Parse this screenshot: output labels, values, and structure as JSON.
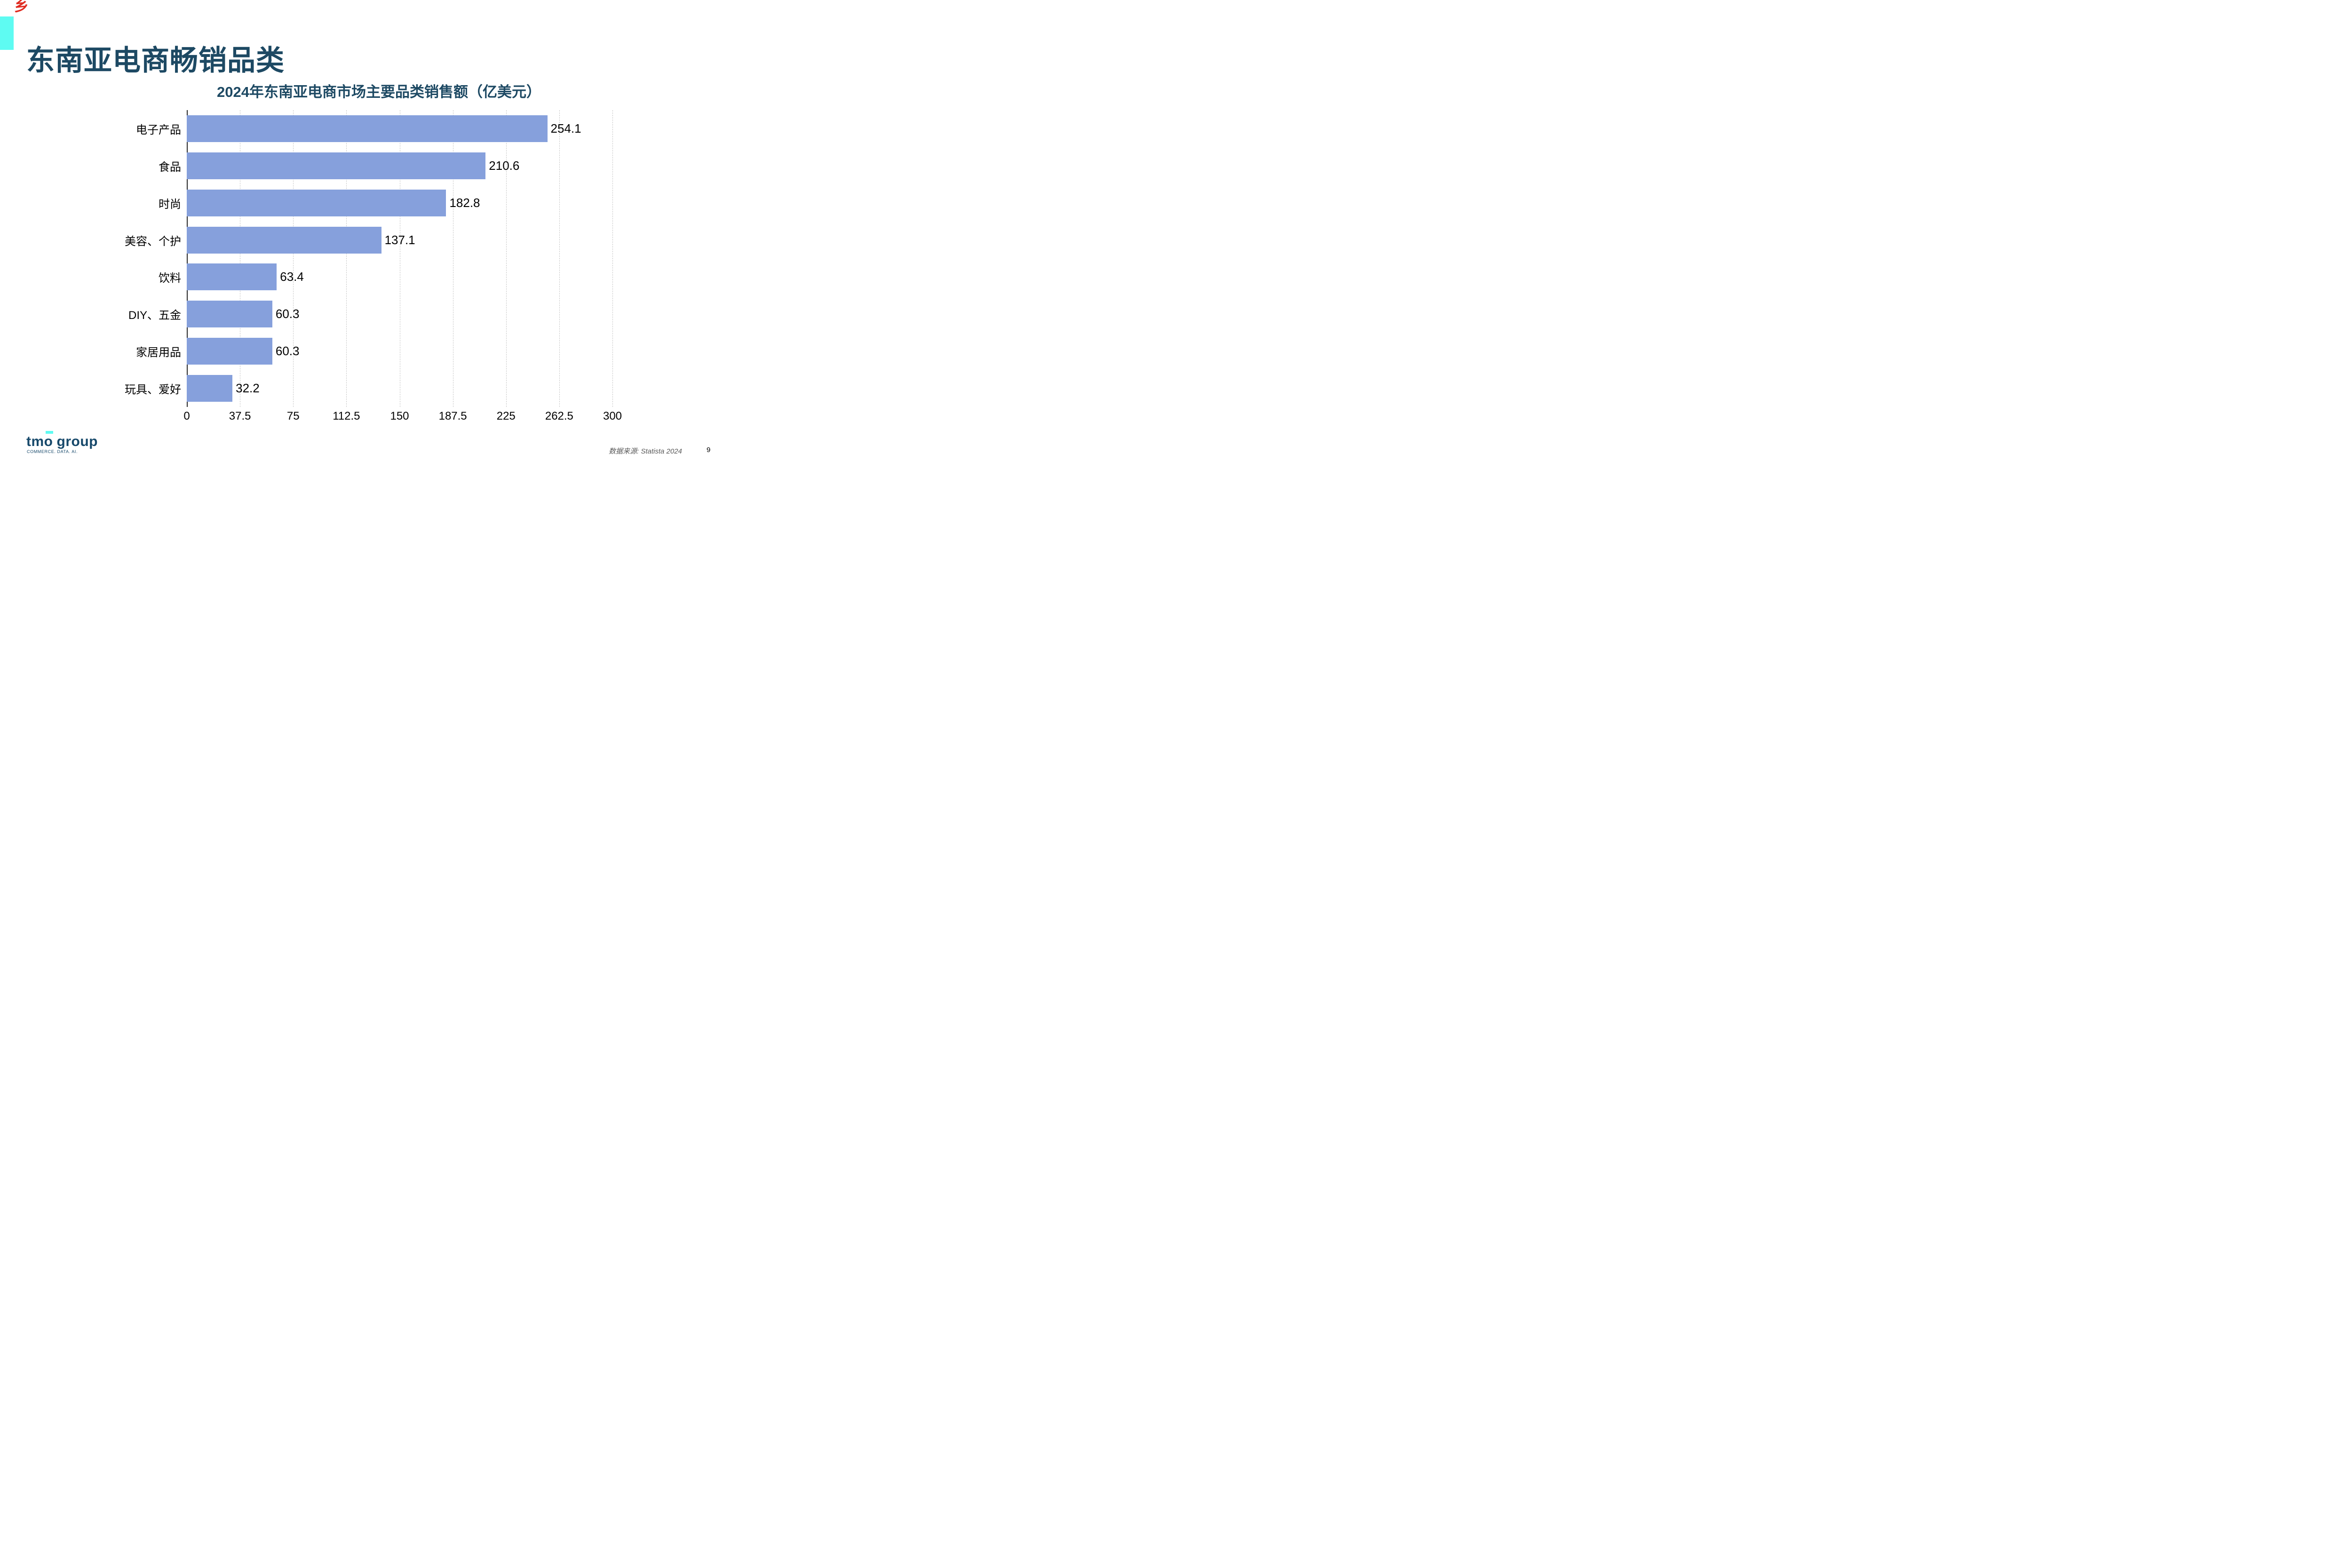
{
  "page": {
    "main_title": "东南亚电商畅销品类",
    "red_mark": "乡",
    "source_note": "数据来源: Statista 2024",
    "page_number": "9"
  },
  "logo": {
    "name_part1": "tmo",
    "name_part2": "group",
    "tagline": "COMMERCE. DATA. AI."
  },
  "colors": {
    "accent_cyan": "#5efbf2",
    "title_navy": "#1d4963",
    "logo_navy": "#17496b",
    "bar_blue": "#86a0dc",
    "gridline_gray": "#c8c8c8",
    "source_gray": "#595959",
    "red_mark": "#e02b20"
  },
  "chart_data": {
    "type": "bar",
    "orientation": "horizontal",
    "title": "2024年东南亚电商市场主要品类销售额（亿美元）",
    "categories": [
      "电子产品",
      "食品",
      "时尚",
      "美容、个护",
      "饮料",
      "DIY、五金",
      "家居用品",
      "玩具、爱好"
    ],
    "values": [
      254.1,
      210.6,
      182.8,
      137.1,
      63.4,
      60.3,
      60.3,
      32.2
    ],
    "xlabel": "",
    "ylabel": "",
    "xlim": [
      0,
      300
    ],
    "xticks": [
      0,
      37.5,
      75,
      112.5,
      150,
      187.5,
      225,
      262.5,
      300
    ],
    "xtick_labels": [
      "0",
      "37.5",
      "75",
      "112.5",
      "150",
      "187.5",
      "225",
      "262.5",
      "300"
    ],
    "grid": "vertical-dashed",
    "legend": false,
    "bar_color": "#86a0dc",
    "value_labels_shown": true
  }
}
